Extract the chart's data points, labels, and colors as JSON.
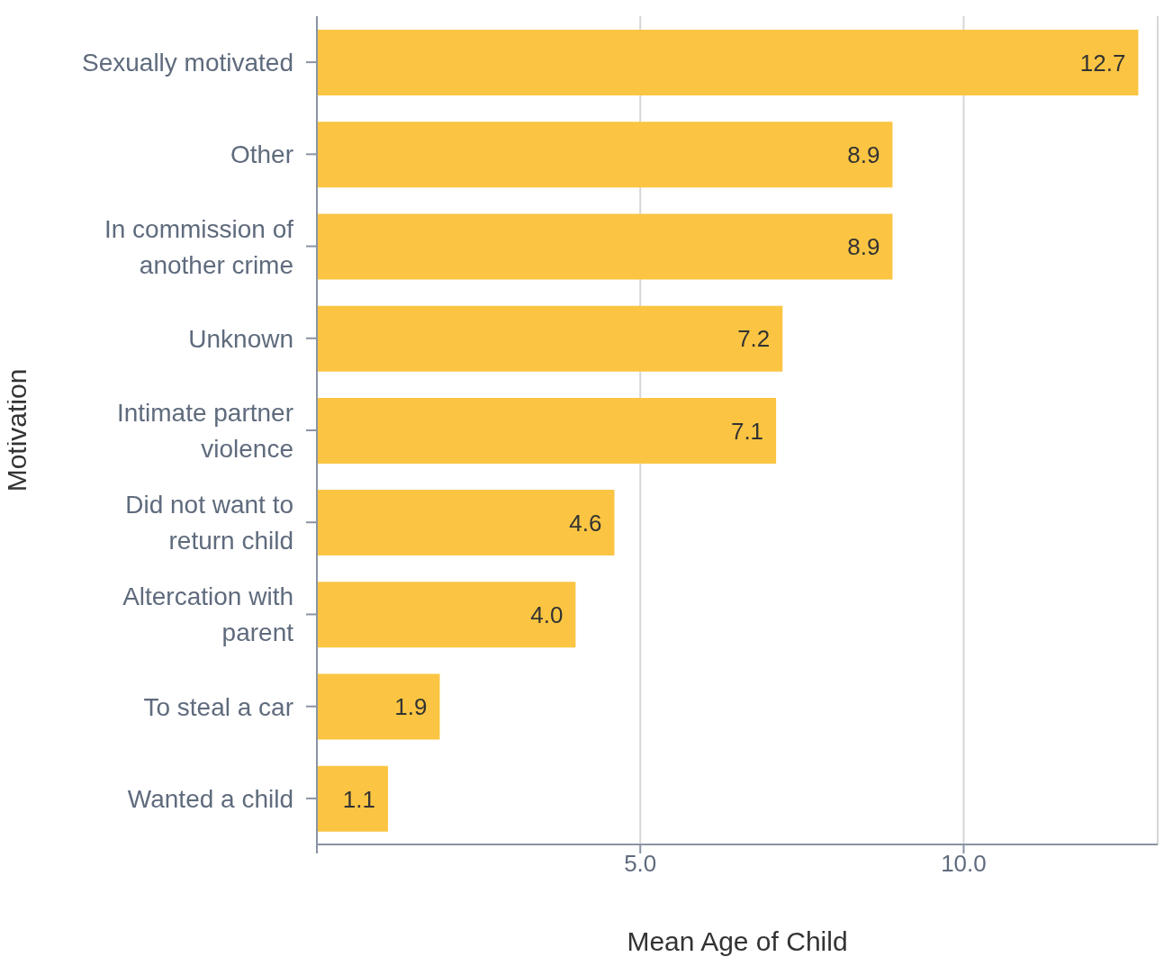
{
  "chart_data": {
    "type": "bar",
    "orientation": "horizontal",
    "xlabel": "Mean Age of Child",
    "ylabel": "Motivation",
    "categories": [
      "Sexually motivated",
      "Other",
      "In commission of another crime",
      "Unknown",
      "Intimate partner violence",
      "Did not want to return child",
      "Altercation with parent",
      "To steal a car",
      "Wanted a child"
    ],
    "values": [
      12.7,
      8.9,
      8.9,
      7.2,
      7.1,
      4.6,
      4.0,
      1.9,
      1.1
    ],
    "value_labels": [
      "12.7",
      "8.9",
      "8.9",
      "7.2",
      "7.1",
      "4.6",
      "4.0",
      "1.9",
      "1.1"
    ],
    "color": "#fbc543",
    "xlim": [
      0,
      13
    ],
    "xticks": [
      {
        "value": 0,
        "label": null
      },
      {
        "value": 5,
        "label": "5.0"
      },
      {
        "value": 10,
        "label": "10.0"
      }
    ],
    "grid": "x"
  }
}
